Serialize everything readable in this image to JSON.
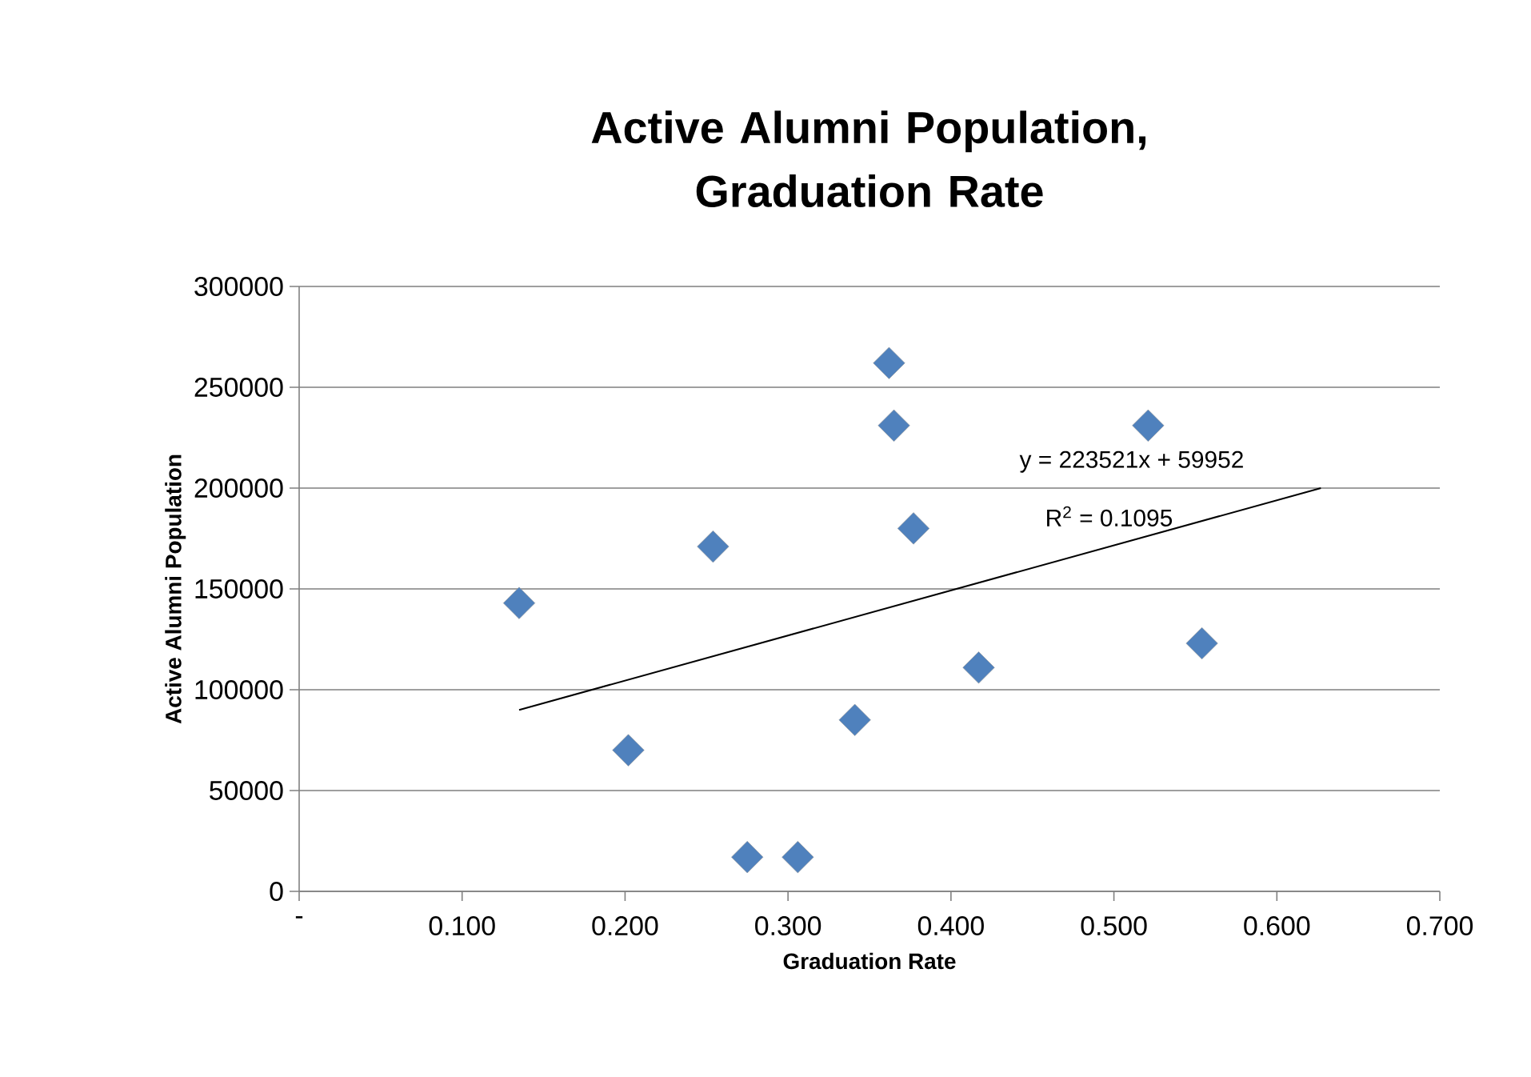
{
  "chart_data": {
    "type": "scatter",
    "title": "Active Alumni Population, Graduation Rate",
    "xlabel": "Graduation Rate",
    "ylabel": "Active Alumni Population",
    "series": [
      {
        "color": "#4f81bd",
        "marker": "diamond",
        "x": [
          0.135,
          0.202,
          0.254,
          0.275,
          0.306,
          0.341,
          0.362,
          0.365,
          0.377,
          0.417,
          0.521,
          0.554
        ],
        "values": [
          143000,
          70000,
          171000,
          17000,
          17000,
          85000,
          262000,
          231000,
          180000,
          111000,
          231000,
          123000
        ]
      },
      {
        "type": "line",
        "color": "#000000",
        "marker": "none",
        "x": [
          0.135,
          0.627
        ],
        "values": [
          90000,
          200000
        ]
      }
    ],
    "annotations": [
      "y = 223521x + 59952",
      "R$^{2}$ = 0.1095"
    ],
    "xlim": [
      0,
      0.7
    ],
    "xticks": [
      {
        "value": 0,
        "label": "-"
      },
      {
        "value": 0.1,
        "label": "0.100"
      },
      {
        "value": 0.2,
        "label": "0.200"
      },
      {
        "value": 0.3,
        "label": "0.300"
      },
      {
        "value": 0.4,
        "label": "0.400"
      },
      {
        "value": 0.5,
        "label": "0.500"
      },
      {
        "value": 0.6,
        "label": "0.600"
      },
      {
        "value": 0.7,
        "label": "0.700"
      }
    ],
    "ylim": [
      0,
      300000
    ],
    "yticks": [
      0,
      50000,
      100000,
      150000,
      200000,
      250000,
      300000
    ],
    "grid": "y"
  }
}
